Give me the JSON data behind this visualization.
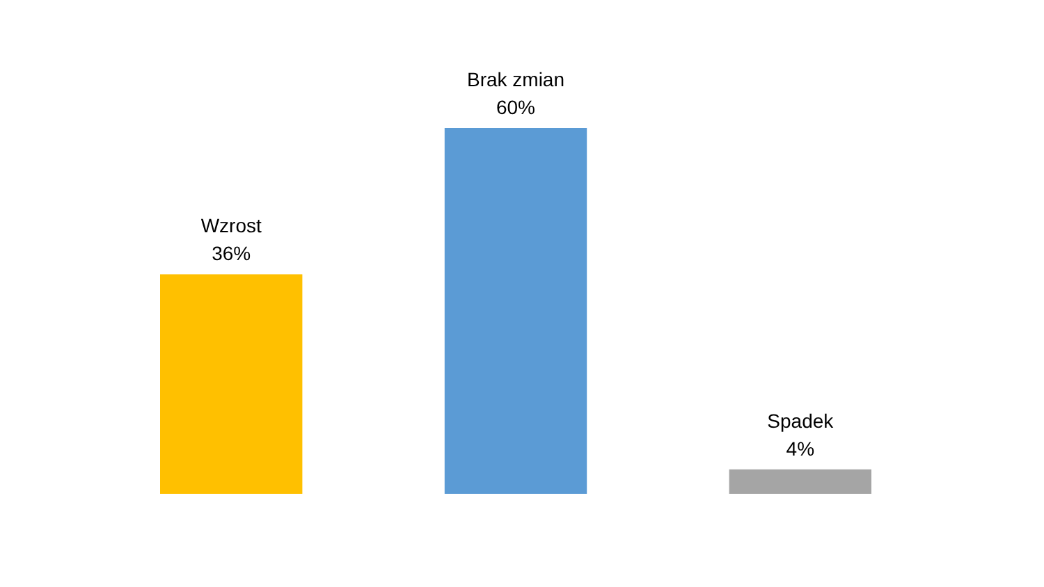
{
  "chart_data": {
    "type": "bar",
    "categories": [
      "Wzrost",
      "Brak zmian",
      "Spadek"
    ],
    "values": [
      36,
      60,
      4
    ],
    "colors": [
      "#ffc000",
      "#5b9bd5",
      "#a5a5a5"
    ],
    "value_labels": [
      "36%",
      "60%",
      "4%"
    ]
  }
}
